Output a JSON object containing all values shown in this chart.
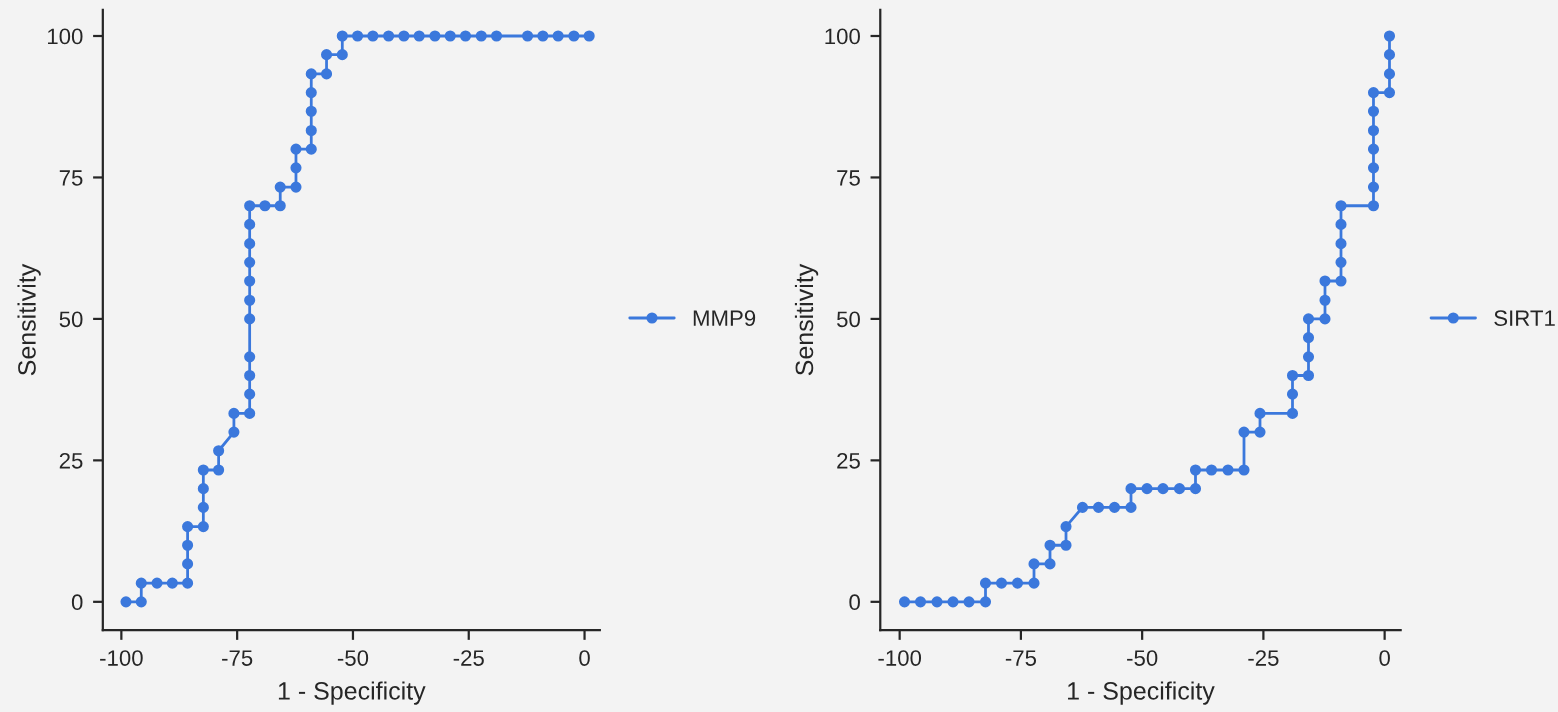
{
  "chart_data": [
    {
      "type": "line",
      "xlabel": "1 - Specificity",
      "ylabel": "Sensitivity",
      "xlim": [
        -104,
        3.3
      ],
      "ylim": [
        -5,
        104.6
      ],
      "xticks": [
        -100,
        -75,
        -50,
        -25,
        0
      ],
      "yticks": [
        0,
        25,
        50,
        75,
        100
      ],
      "grid": false,
      "legend": "right",
      "marker": "circle",
      "line_style": "solid",
      "series": [
        {
          "name": "MMP9",
          "color": "#3b78dc",
          "x": [
            -99,
            -95.7,
            -95.7,
            -92.3,
            -89,
            -85.7,
            -85.7,
            -85.7,
            -85.7,
            -82.3,
            -82.3,
            -82.3,
            -82.3,
            -79,
            -79,
            -75.7,
            -75.7,
            -72.3,
            -72.3,
            -72.3,
            -72.3,
            -72.3,
            -72.3,
            -72.3,
            -72.3,
            -72.3,
            -72.3,
            -72.3,
            -69,
            -65.7,
            -65.7,
            -62.3,
            -62.3,
            -62.3,
            -59,
            -59,
            -59,
            -59,
            -59,
            -55.7,
            -55.7,
            -52.3,
            -52.3,
            -49,
            -45.7,
            -42.3,
            -39,
            -35.7,
            -32.3,
            -29,
            -25.7,
            -22.3,
            -19,
            -12.3,
            -9,
            -5.7,
            -2.3,
            1
          ],
          "values": [
            0,
            0,
            3.3,
            3.3,
            3.3,
            3.3,
            6.7,
            10,
            13.3,
            13.3,
            16.7,
            20,
            23.3,
            23.3,
            26.7,
            30,
            33.3,
            33.3,
            36.7,
            40,
            43.3,
            50,
            53.3,
            56.7,
            60,
            63.3,
            66.7,
            70,
            70,
            70,
            73.3,
            73.3,
            76.7,
            80,
            80,
            83.3,
            86.7,
            90,
            93.3,
            93.3,
            96.7,
            96.7,
            100,
            100,
            100,
            100,
            100,
            100,
            100,
            100,
            100,
            100,
            100,
            100,
            100,
            100,
            100,
            100
          ]
        }
      ]
    },
    {
      "type": "line",
      "xlabel": "1 - Specificity",
      "ylabel": "Sensitivity",
      "xlim": [
        -104,
        3.3
      ],
      "ylim": [
        -5,
        104.6
      ],
      "xticks": [
        -100,
        -75,
        -50,
        -25,
        0
      ],
      "yticks": [
        0,
        25,
        50,
        75,
        100
      ],
      "grid": false,
      "legend": "right",
      "marker": "circle",
      "line_style": "solid",
      "series": [
        {
          "name": "SIRT1",
          "color": "#3b78dc",
          "x": [
            -99,
            -95.7,
            -92.3,
            -89,
            -85.7,
            -82.3,
            -82.3,
            -79,
            -75.7,
            -72.3,
            -72.3,
            -69,
            -69,
            -65.7,
            -65.7,
            -62.3,
            -59,
            -55.7,
            -52.3,
            -52.3,
            -49,
            -45.7,
            -42.3,
            -39,
            -39,
            -35.7,
            -32.3,
            -29,
            -29,
            -25.7,
            -25.7,
            -19,
            -19,
            -19,
            -15.7,
            -15.7,
            -15.7,
            -15.7,
            -12.3,
            -12.3,
            -12.3,
            -9,
            -9,
            -9,
            -9,
            -9,
            -2.3,
            -2.3,
            -2.3,
            -2.3,
            -2.3,
            -2.3,
            -2.3,
            1,
            1,
            1,
            1
          ],
          "values": [
            0,
            0,
            0,
            0,
            0,
            0,
            3.3,
            3.3,
            3.3,
            3.3,
            6.7,
            6.7,
            10,
            10,
            13.3,
            16.7,
            16.7,
            16.7,
            16.7,
            20,
            20,
            20,
            20,
            20,
            23.3,
            23.3,
            23.3,
            23.3,
            30,
            30,
            33.3,
            33.3,
            36.7,
            40,
            40,
            43.3,
            46.7,
            50,
            50,
            53.3,
            56.7,
            56.7,
            60,
            63.3,
            66.7,
            70,
            70,
            73.3,
            76.7,
            80,
            83.3,
            86.7,
            90,
            90,
            93.3,
            96.7,
            100
          ]
        }
      ]
    }
  ]
}
